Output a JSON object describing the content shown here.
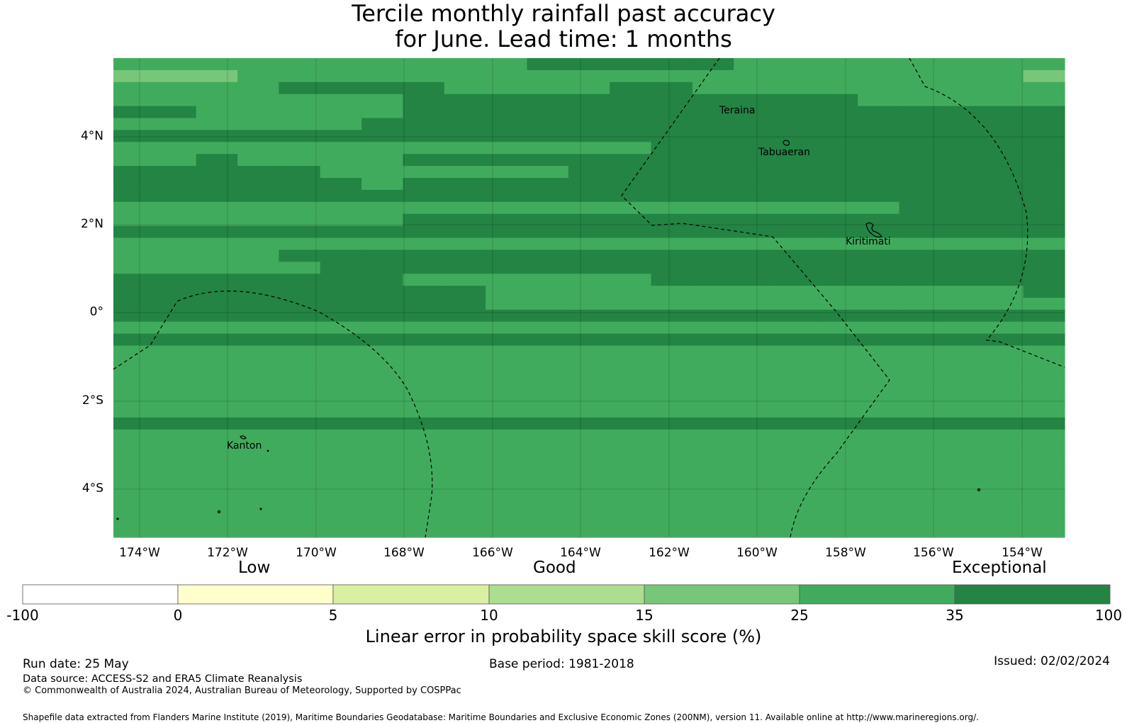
{
  "title": {
    "line1": "Tercile monthly rainfall past accuracy",
    "line2": "for June. Lead time: 1 months"
  },
  "map": {
    "lat_ticks": [
      "4°N",
      "2°N",
      "0°",
      "2°S",
      "4°S"
    ],
    "lon_ticks": [
      "174°W",
      "172°W",
      "170°W",
      "168°W",
      "166°W",
      "164°W",
      "162°W",
      "160°W",
      "158°W",
      "156°W",
      "154°W"
    ],
    "places": [
      "Teraina",
      "Tabuaeran",
      "Kiritimati",
      "Kanton"
    ],
    "grid_colors": {
      "1": "#78c679",
      "2": "#41ab5d",
      "3": "#238443"
    },
    "grid": [
      "22222222223333322222222",
      "11122222222222222222221",
      "22223333222233222222222",
      "22222223333333333322222",
      "33222223333333333333333",
      "22222233333333333333333",
      "33333333333333333333333",
      "22222222222223333333333",
      "22322223333333333333333",
      "33333222222333333333333",
      "33333323333333333333333",
      "33333333333333333333333",
      "22222222222222222223333",
      "22222223333333333333333",
      "33333333333333333333333",
      "22222222222222222222222",
      "22223333333333333333333",
      "22222333333333333333333",
      "33333332222223333333333",
      "33333333322222222222223",
      "33333333322222222222222",
      "33333333333333333333333",
      "22222222222222222222222",
      "33333333333333333333333",
      "22222222222222222222222",
      "22222222222222222222222",
      "22222222222222222222222",
      "22222222222222222222222",
      "22222222222222222222222",
      "22222222222222222222222",
      "33333333333333333333333",
      "22222222222222222222222",
      "22222222222222222222222",
      "22222222222222222222222",
      "22222222222222222222222",
      "22222222222222222222222",
      "22222222222222222222222",
      "22222222222222222222222",
      "22222222222222222222222",
      "22222222222222222222222"
    ]
  },
  "colorbar": {
    "categories": [
      "Low",
      "Good",
      "Exceptional"
    ],
    "ticks": [
      "-100",
      "0",
      "5",
      "10",
      "15",
      "25",
      "35",
      "100"
    ],
    "colors": [
      "#ffffff",
      "#ffffcc",
      "#d9f0a3",
      "#addd8e",
      "#78c679",
      "#41ab5d",
      "#238443"
    ],
    "title": "Linear error in probability space skill score (%)"
  },
  "footer": {
    "run_date": "Run date: 25 May",
    "base_period": "Base period: 1981-2018",
    "issued": "Issued: 02/02/2024",
    "data_source": "Data source: ACCESS-S2 and ERA5 Climate Reanalysis",
    "copyright": "© Commonwealth of Australia 2024, Australian Bureau of Meteorology, Supported by COSPPac",
    "shapefile": "Shapefile data extracted from Flanders Marine Institute (2019), Maritime Boundaries Geodatabase: Maritime Boundaries and Exclusive Economic Zones (200NM), version 11. Available online at http://www.marineregions.org/."
  }
}
